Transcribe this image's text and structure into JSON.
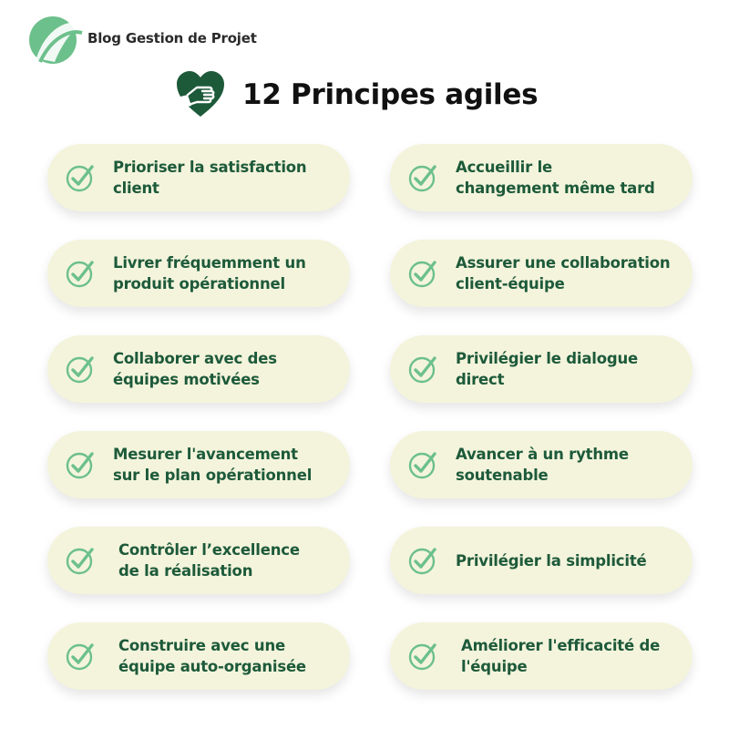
{
  "brand": {
    "name": "Blog Gestion de Projet",
    "color": "#6cc08b"
  },
  "header": {
    "title": "12 Principes agiles",
    "icon": "heart-hand-icon",
    "icon_color": "#1d5a3a"
  },
  "colors": {
    "card_bg": "#f4f4dc",
    "text": "#1d5a3a",
    "check": "#6cc08b"
  },
  "principles": [
    {
      "line1": "Prioriser la satisfaction",
      "line2": "client"
    },
    {
      "line1": "Accueillir le",
      "line2": "changement même tard"
    },
    {
      "line1": "Livrer fréquemment un",
      "line2": "produit opérationnel"
    },
    {
      "line1": "Assurer une collaboration",
      "line2": "client-équipe"
    },
    {
      "line1": "Collaborer avec des",
      "line2": "équipes motivées"
    },
    {
      "line1": "Privilégier le dialogue",
      "line2": "direct"
    },
    {
      "line1": "Mesurer l'avancement",
      "line2": "sur le plan opérationnel"
    },
    {
      "line1": "Avancer à un rythme",
      "line2": "soutenable"
    },
    {
      "line1": "Contrôler l’excellence",
      "line2": "de la réalisation"
    },
    {
      "line1": "Privilégier la simplicité",
      "line2": ""
    },
    {
      "line1": "Construire avec une",
      "line2": "équipe auto-organisée"
    },
    {
      "line1": "Améliorer l'efficacité de",
      "line2": "l'équipe"
    }
  ]
}
